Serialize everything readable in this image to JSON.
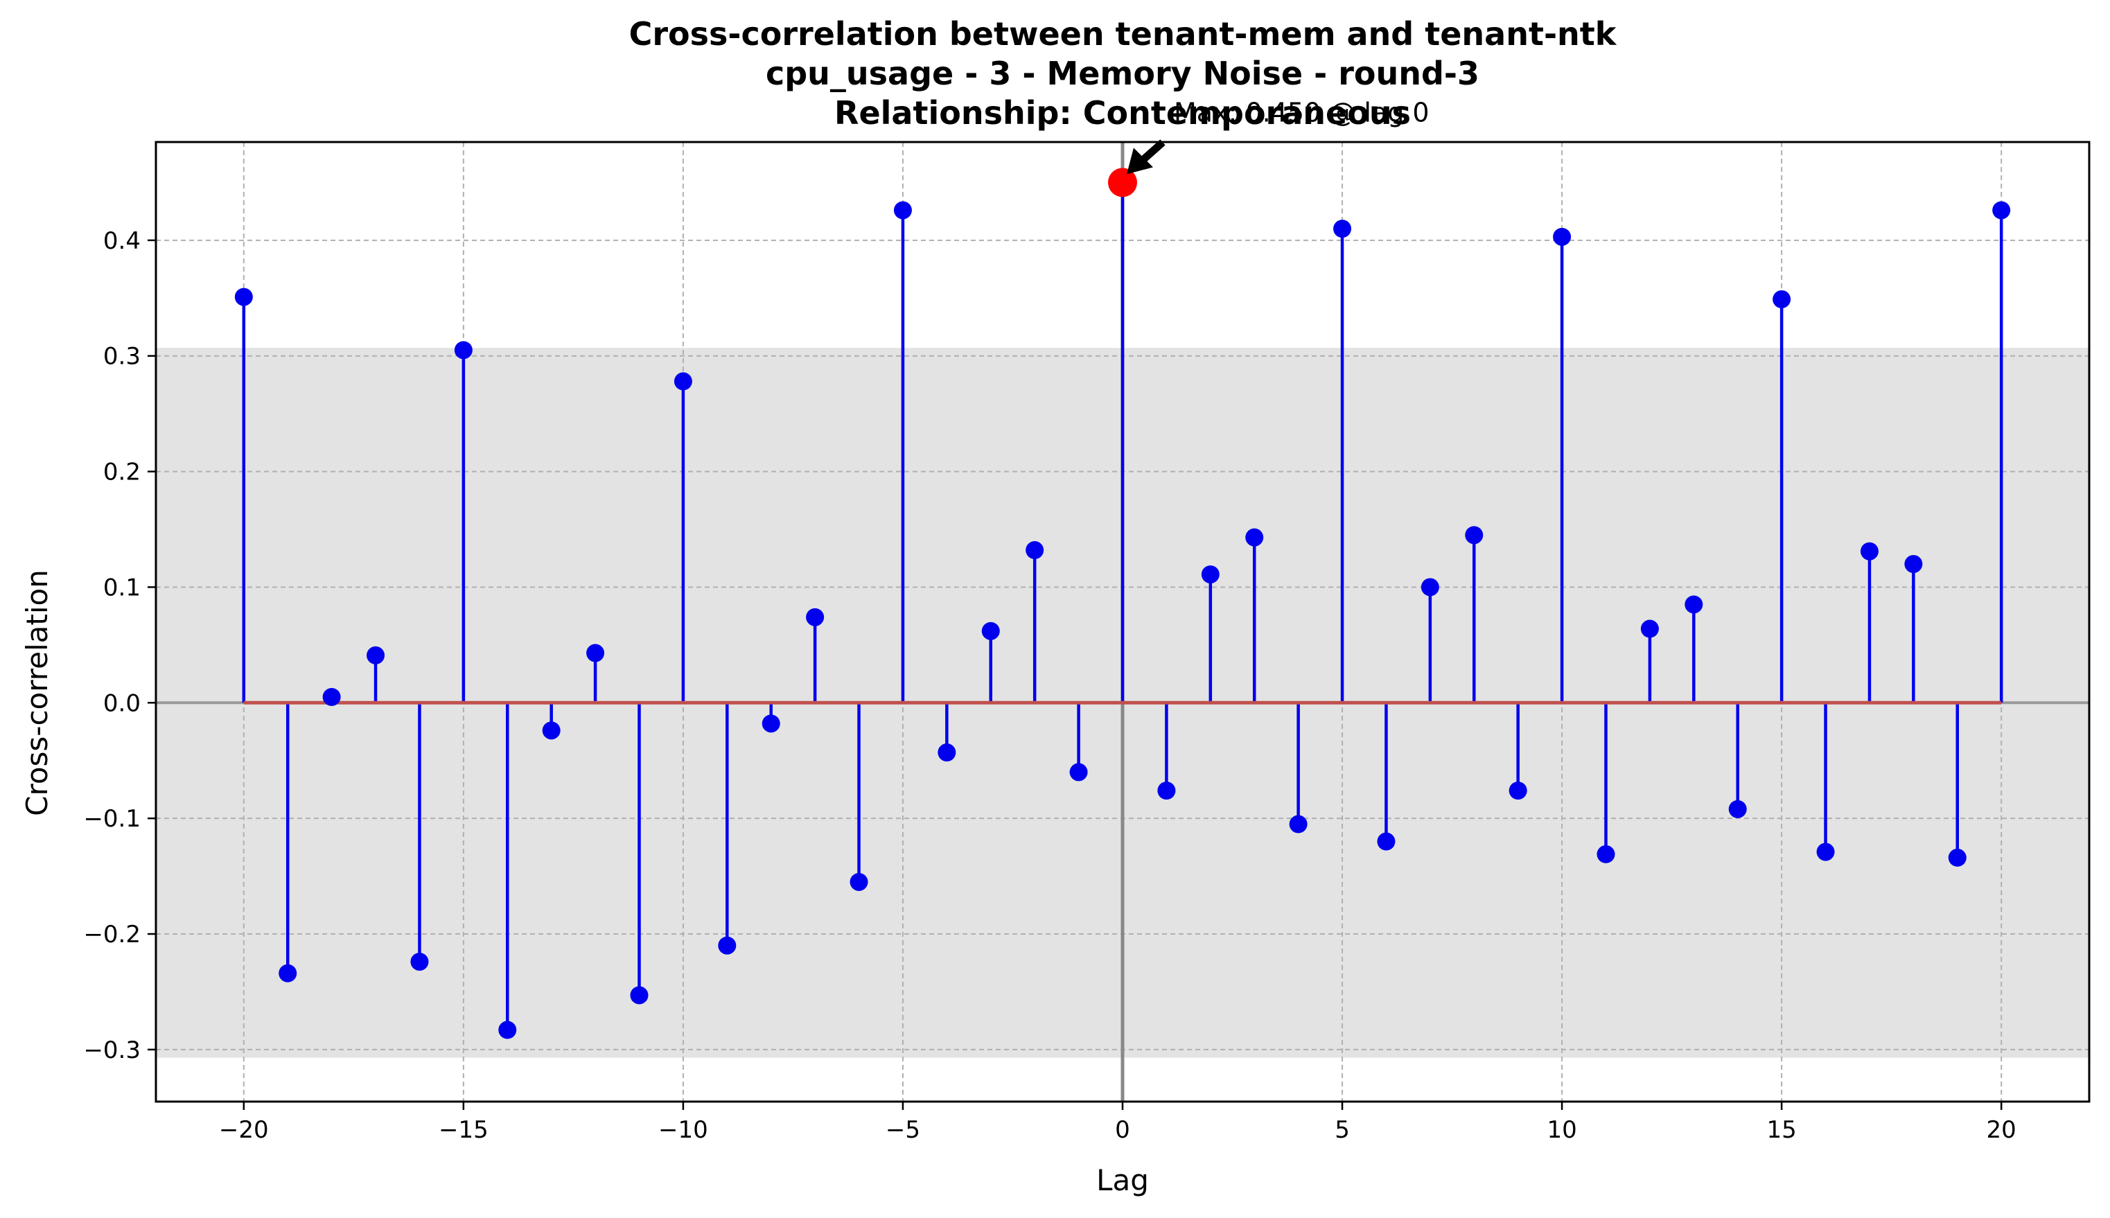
{
  "chart_data": {
    "type": "stem",
    "title_lines": [
      "Cross-correlation between tenant-mem and tenant-ntk",
      "cpu_usage - 3 - Memory Noise - round-3",
      "Relationship: Contemporaneous"
    ],
    "xlabel": "Lag",
    "ylabel": "Cross-correlation",
    "xlim": [
      -22,
      22
    ],
    "ylim": [
      -0.345,
      0.485
    ],
    "xticks": [
      -20,
      -15,
      -10,
      -5,
      0,
      5,
      10,
      15,
      20
    ],
    "xtick_labels": [
      "−20",
      "−15",
      "−10",
      "−5",
      "0",
      "5",
      "10",
      "15",
      "20"
    ],
    "yticks": [
      -0.3,
      -0.2,
      -0.1,
      0.0,
      0.1,
      0.2,
      0.3,
      0.4
    ],
    "ytick_labels": [
      "−0.3",
      "−0.2",
      "−0.1",
      "0.0",
      "0.1",
      "0.2",
      "0.3",
      "0.4"
    ],
    "grid": true,
    "confidence_band": [
      -0.307,
      0.307
    ],
    "zero_lag_line": 0,
    "x": [
      -20,
      -19,
      -18,
      -17,
      -16,
      -15,
      -14,
      -13,
      -12,
      -11,
      -10,
      -9,
      -8,
      -7,
      -6,
      -5,
      -4,
      -3,
      -2,
      -1,
      0,
      1,
      2,
      3,
      4,
      5,
      6,
      7,
      8,
      9,
      10,
      11,
      12,
      13,
      14,
      15,
      16,
      17,
      18,
      19,
      20
    ],
    "values": [
      0.351,
      -0.234,
      0.005,
      0.041,
      -0.224,
      0.305,
      -0.283,
      -0.024,
      0.043,
      -0.253,
      0.278,
      -0.21,
      -0.018,
      0.074,
      -0.155,
      0.426,
      -0.043,
      0.062,
      0.132,
      -0.06,
      0.45,
      -0.076,
      0.111,
      0.143,
      -0.105,
      0.41,
      -0.12,
      0.1,
      0.145,
      -0.076,
      0.403,
      -0.131,
      0.064,
      0.085,
      -0.092,
      0.349,
      -0.129,
      0.131,
      0.12,
      -0.134,
      0.426
    ],
    "max_point": {
      "lag": 0,
      "value": 0.45
    },
    "annotation": "Max: 0.450 @ lag 0",
    "colors": {
      "stem": "#0000ee",
      "marker": "#0000ee",
      "max_marker": "#ff0000",
      "baseline": "#c0504d",
      "band": "#e3e3e3",
      "grid": "#b0b0b0",
      "zero_lag_line": "#888888"
    }
  }
}
